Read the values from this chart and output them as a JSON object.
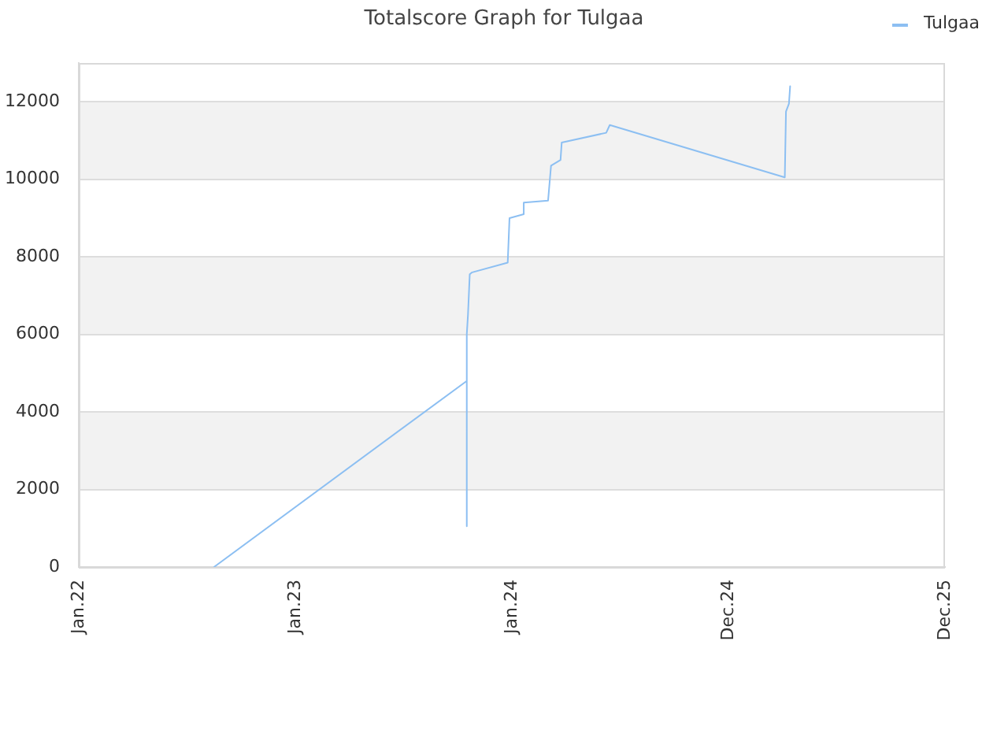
{
  "chart_data": {
    "type": "line",
    "title": "Totalscore Graph for Tulgaa",
    "x": [
      "2022-08-17",
      "2023-10-17",
      "2023-10-17",
      "2023-10-17",
      "2023-10-19",
      "2023-10-22",
      "2023-10-26",
      "2023-12-25",
      "2023-12-28",
      "2024-01-21",
      "2024-01-21",
      "2024-03-02",
      "2024-03-07",
      "2024-03-23",
      "2024-03-25",
      "2024-06-08",
      "2024-06-14",
      "2025-04-05",
      "2025-04-07",
      "2025-04-12",
      "2025-04-14"
    ],
    "series": [
      {
        "name": "Tulgaa",
        "color": "#8cbff2",
        "values": [
          0,
          4800,
          1050,
          6000,
          6500,
          7550,
          7600,
          7850,
          9000,
          9100,
          9400,
          9450,
          10350,
          10500,
          10950,
          11200,
          11400,
          10050,
          11750,
          11950,
          12400
        ]
      }
    ],
    "xlim": [
      "2022-01-01",
      "2025-12-31"
    ],
    "xticks": [
      {
        "value": "2022-01-01",
        "label": "Jan.22"
      },
      {
        "value": "2023-01-01",
        "label": "Jan.23"
      },
      {
        "value": "2024-01-01",
        "label": "Jan.24"
      },
      {
        "value": "2024-12-31",
        "label": "Dec.24"
      },
      {
        "value": "2025-12-31",
        "label": "Dec.25"
      }
    ],
    "ylim": [
      0,
      13000
    ],
    "yticks": [
      0,
      2000,
      4000,
      6000,
      8000,
      10000,
      12000
    ],
    "grid": "y",
    "legend": "top right"
  }
}
